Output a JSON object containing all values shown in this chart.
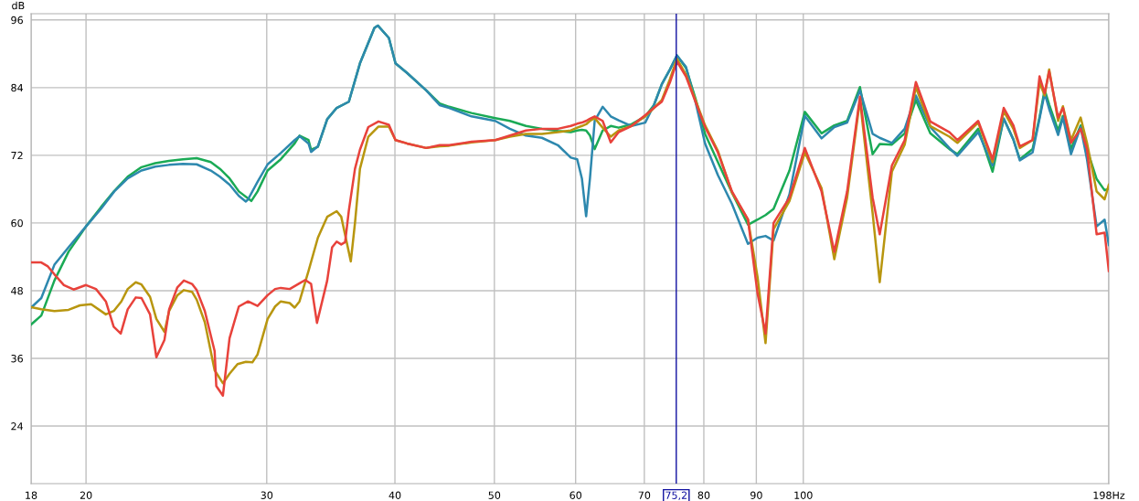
{
  "chart_data": {
    "type": "line",
    "ylabel": "dB",
    "log": "x",
    "grid": true,
    "line_style": "solid",
    "xlim": [
      17.68,
      198.5
    ],
    "xticks": [
      {
        "value": 17.68,
        "label": "18"
      },
      20,
      30,
      40,
      50,
      60,
      70,
      80,
      90,
      100,
      {
        "value": 198.5,
        "label": "198Hz"
      }
    ],
    "ylim": [
      13.8,
      97.1
    ],
    "yticks": [
      24,
      36,
      48,
      60,
      72,
      84,
      96
    ],
    "ref_lines": [
      {
        "axis": "x",
        "value": 75.2,
        "label": "75,2",
        "color": "#1010a0"
      }
    ],
    "series": [
      {
        "color": "#1aaa55",
        "x": [
          17.68,
          18.09,
          18.63,
          19.23,
          20.0,
          20.68,
          21.31,
          21.96,
          22.65,
          23.36,
          24.09,
          24.86,
          25.64,
          26.46,
          27.01,
          27.6,
          28.18,
          28.98,
          29.39,
          30.06,
          30.96,
          31.94,
          32.29,
          32.95,
          33.14,
          33.65,
          34.36,
          35.1,
          36.07,
          36.98,
          38.2,
          38.49,
          39.46,
          40.05,
          41.1,
          42.91,
          44.22,
          45.18,
          47.5,
          50.1,
          51.77,
          53.67,
          55.63,
          57.66,
          59.35,
          60.21,
          60.85,
          61.43,
          61.96,
          62.62,
          63.75,
          64.92,
          66.08,
          68.01,
          70.14,
          71.52,
          72.8,
          74.13,
          75.32,
          76.85,
          78.51,
          80.22,
          82.56,
          85.21,
          88.33,
          90.25,
          91.88,
          93.55,
          96.95,
          100.35,
          104.18,
          107.21,
          110.34,
          113.56,
          116.84,
          118.71,
          122.0,
          125.55,
          128.74,
          132.98,
          138.81,
          141.32,
          148.07,
          152.93,
          156.8,
          160.23,
          162.55,
          167.29,
          169.92,
          171.88,
          173.63,
          177.15,
          179.08,
          182.35,
          186.33,
          189.01,
          193.14,
          196.63,
          198.49
        ],
        "values": [
          42,
          43.6,
          49.8,
          54.9,
          59.4,
          62.8,
          65.7,
          68.2,
          69.9,
          70.6,
          71,
          71.3,
          71.5,
          70.8,
          69.6,
          67.9,
          65.6,
          63.9,
          65.6,
          69.3,
          71.3,
          74.1,
          75.5,
          74.7,
          73,
          73.5,
          78.4,
          80.4,
          81.5,
          88.3,
          94.6,
          95,
          92.8,
          88.3,
          86.6,
          83.5,
          81.2,
          80.6,
          79.5,
          78.6,
          78.1,
          77.2,
          76.7,
          76.3,
          76.1,
          76.4,
          76.5,
          76.4,
          75.5,
          73.1,
          76.4,
          77.2,
          76.9,
          77.5,
          78.9,
          80.9,
          84.6,
          87.2,
          89.7,
          87.5,
          82.1,
          75.8,
          70.8,
          65.4,
          59.7,
          60.6,
          61.4,
          62.5,
          69.3,
          79.7,
          75.9,
          77.3,
          78.1,
          84.1,
          72.2,
          74.0,
          73.9,
          75.9,
          81.8,
          75.9,
          73.1,
          72.2,
          76.7,
          69.1,
          78.5,
          74.8,
          71.3,
          73.1,
          78.8,
          83.6,
          81.0,
          76.4,
          79.0,
          73.1,
          77.3,
          73.1,
          67.8,
          65.8,
          66.1
        ]
      },
      {
        "color": "#2d88ae",
        "x": [
          17.68,
          18.09,
          18.63,
          19.23,
          20.0,
          20.68,
          21.31,
          21.96,
          22.65,
          23.36,
          24.09,
          24.86,
          25.64,
          26.46,
          27.01,
          27.6,
          28.18,
          28.63,
          28.77,
          29.39,
          30.06,
          30.96,
          31.94,
          32.29,
          32.95,
          33.14,
          33.65,
          34.36,
          35.1,
          36.07,
          36.98,
          38.2,
          38.49,
          39.46,
          40.05,
          41.1,
          42.91,
          44.22,
          45.18,
          47.5,
          50.1,
          51.77,
          53.67,
          55.63,
          57.66,
          59.35,
          60.21,
          60.85,
          61.43,
          61.96,
          62.62,
          63.75,
          64.92,
          66.08,
          68.01,
          70.14,
          71.52,
          72.8,
          74.13,
          75.32,
          76.85,
          78.51,
          80.22,
          82.56,
          85.21,
          88.33,
          90.25,
          91.88,
          93.55,
          96.95,
          100.35,
          104.18,
          107.21,
          110.34,
          113.56,
          116.84,
          118.71,
          122.0,
          125.55,
          128.74,
          132.98,
          138.81,
          141.32,
          148.07,
          152.93,
          156.8,
          160.23,
          162.55,
          167.29,
          169.92,
          171.88,
          173.63,
          177.15,
          179.08,
          182.35,
          186.33,
          189.01,
          193.14,
          196.63,
          198.49
        ],
        "values": [
          45,
          46.7,
          52.6,
          55.7,
          59.4,
          62.5,
          65.6,
          67.9,
          69.3,
          70,
          70.3,
          70.5,
          70.4,
          69.3,
          68.2,
          66.8,
          64.8,
          63.8,
          64.2,
          67.3,
          70.4,
          72.4,
          74.7,
          75.4,
          74.1,
          72.6,
          73.6,
          78.4,
          80.4,
          81.5,
          88.3,
          94.6,
          95,
          92.8,
          88.3,
          86.6,
          83.5,
          80.9,
          80.4,
          78.9,
          78.1,
          76.7,
          75.5,
          75.1,
          73.8,
          71.6,
          71.3,
          67.9,
          61.2,
          67.9,
          78.1,
          80.6,
          78.9,
          78.2,
          77.2,
          77.8,
          80.9,
          84.6,
          87.2,
          89.7,
          87.7,
          81.5,
          74.1,
          68.5,
          63.4,
          56.3,
          57.4,
          57.7,
          56.9,
          65.1,
          79.0,
          75.0,
          77.0,
          77.8,
          83.5,
          75.8,
          75.1,
          74.2,
          76.7,
          82.6,
          77.0,
          73.3,
          71.9,
          76.1,
          70.2,
          78.5,
          74.8,
          71.1,
          72.5,
          78.5,
          83.0,
          80.2,
          75.6,
          78.7,
          72.2,
          77.0,
          71.3,
          59.4,
          60.6,
          56.1
        ]
      },
      {
        "color": "#b8960f",
        "x": [
          17.68,
          18.09,
          18.63,
          19.23,
          19.73,
          20.23,
          20.91,
          21.28,
          21.65,
          21.96,
          22.36,
          22.65,
          23.09,
          23.42,
          23.85,
          24.1,
          24.55,
          24.91,
          25.37,
          25.64,
          26.11,
          26.69,
          27.19,
          27.6,
          28.1,
          28.63,
          29.05,
          29.39,
          30.06,
          30.57,
          30.96,
          31.59,
          31.94,
          32.29,
          32.95,
          33.65,
          34.36,
          35.1,
          35.46,
          36.23,
          36.57,
          36.98,
          37.68,
          38.55,
          39.46,
          40.05,
          41.1,
          42.91,
          44.22,
          45.18,
          47.5,
          50.1,
          51.77,
          53.67,
          55.63,
          57.66,
          59.35,
          60.21,
          60.85,
          61.43,
          61.96,
          62.62,
          63.75,
          64.92,
          66.08,
          68.01,
          70.14,
          71.52,
          72.8,
          74.13,
          75.32,
          76.85,
          78.51,
          80.22,
          82.56,
          85.21,
          88.33,
          90.25,
          91.88,
          93.55,
          96.95,
          100.35,
          104.18,
          107.21,
          110.34,
          113.56,
          116.84,
          118.71,
          122.0,
          125.55,
          128.74,
          132.98,
          138.81,
          141.32,
          148.07,
          152.93,
          156.8,
          160.23,
          162.55,
          167.29,
          169.92,
          171.88,
          173.63,
          177.15,
          179.08,
          182.35,
          186.33,
          189.01,
          193.14,
          196.63,
          198.49
        ],
        "values": [
          45.1,
          44.7,
          44.4,
          44.6,
          45.4,
          45.6,
          43.8,
          44.4,
          46.1,
          48.3,
          49.5,
          49.1,
          46.9,
          43,
          40.7,
          44.4,
          47.2,
          48.1,
          47.8,
          46.4,
          42.4,
          33.9,
          31.6,
          33.3,
          35,
          35.4,
          35.3,
          36.7,
          43,
          45.2,
          46.1,
          45.8,
          45,
          46.1,
          51.5,
          57.4,
          61.1,
          62.1,
          61.1,
          53.2,
          60,
          69.6,
          75.3,
          77.1,
          77.1,
          74.7,
          74.1,
          73.3,
          73.6,
          73.7,
          74.3,
          74.7,
          75.3,
          75.8,
          75.8,
          76.1,
          76.4,
          76.9,
          77.2,
          77.5,
          78.1,
          78.6,
          76.9,
          75.3,
          76.4,
          77.2,
          78.9,
          80.4,
          81.8,
          85.5,
          89.1,
          86.3,
          81.8,
          77.3,
          72.8,
          65.4,
          60.6,
          50.4,
          38.7,
          58.9,
          63.9,
          72.5,
          66.2,
          53.6,
          64.5,
          81.8,
          61.7,
          49.5,
          69.1,
          73.9,
          84.1,
          77.2,
          75.3,
          74.2,
          77.8,
          70.8,
          79.8,
          76.7,
          73.3,
          74.7,
          84.9,
          82.6,
          87.2,
          78.1,
          80.7,
          74.7,
          78.7,
          74.2,
          65.6,
          64.2,
          66.8
        ]
      },
      {
        "color": "#e8423b",
        "x": [
          17.68,
          18.09,
          18.36,
          18.63,
          19.03,
          19.45,
          20.0,
          20.45,
          20.91,
          21.28,
          21.62,
          21.96,
          22.36,
          22.65,
          23.09,
          23.42,
          23.85,
          24.1,
          24.55,
          24.91,
          25.37,
          25.64,
          26.11,
          26.69,
          26.79,
          27.19,
          27.6,
          28.18,
          28.77,
          29.39,
          30.06,
          30.57,
          30.96,
          31.59,
          32.29,
          32.71,
          33.14,
          33.58,
          34.36,
          34.74,
          35.1,
          35.46,
          35.77,
          36.07,
          36.57,
          36.98,
          37.68,
          38.55,
          39.46,
          40.05,
          41.1,
          42.91,
          44.22,
          45.18,
          47.5,
          50.1,
          51.77,
          53.67,
          55.63,
          57.66,
          59.35,
          60.21,
          60.85,
          61.43,
          61.96,
          62.62,
          63.75,
          64.92,
          66.08,
          68.01,
          70.14,
          71.52,
          72.8,
          74.13,
          75.32,
          76.85,
          78.51,
          80.22,
          82.56,
          85.21,
          88.33,
          90.25,
          91.88,
          93.55,
          96.95,
          100.35,
          104.18,
          107.21,
          110.34,
          113.56,
          116.84,
          118.71,
          122.0,
          125.55,
          128.74,
          132.98,
          138.81,
          141.32,
          148.07,
          152.93,
          156.8,
          160.23,
          162.55,
          167.29,
          169.92,
          171.88,
          173.63,
          177.15,
          179.08,
          182.35,
          186.33,
          189.01,
          193.14,
          196.63,
          198.49
        ],
        "values": [
          53,
          53,
          52.3,
          50.9,
          49,
          48.2,
          49,
          48.3,
          46.1,
          41.6,
          40.4,
          44.7,
          46.8,
          46.7,
          43.8,
          36.2,
          39.3,
          44.7,
          48.6,
          49.8,
          49.2,
          48.1,
          44.4,
          37.3,
          31.1,
          29.4,
          39.6,
          45.2,
          46.1,
          45.3,
          47.2,
          48.3,
          48.5,
          48.3,
          49.3,
          49.9,
          49.2,
          42.3,
          49.8,
          55.7,
          56.7,
          56.2,
          56.6,
          62.2,
          69.6,
          73,
          77,
          78,
          77.4,
          74.7,
          74.1,
          73.3,
          73.8,
          73.8,
          74.4,
          74.7,
          75.5,
          76.4,
          76.7,
          76.7,
          77.2,
          77.6,
          77.8,
          78.1,
          78.5,
          78.9,
          78.1,
          74.3,
          76.1,
          77.2,
          79.1,
          80.4,
          81.5,
          84.9,
          88.6,
          86,
          81.5,
          77,
          72.5,
          65.6,
          60.6,
          47.5,
          40.4,
          60.0,
          64.5,
          73.3,
          65.6,
          54.9,
          65.6,
          82.4,
          64.5,
          58.0,
          70.2,
          74.7,
          85.0,
          78.0,
          76.1,
          74.7,
          78.1,
          71.3,
          80.4,
          77.3,
          73.6,
          74.7,
          86.0,
          83.0,
          86.9,
          78.7,
          80.4,
          74.2,
          76.7,
          73.1,
          58.0,
          58.3,
          51.5
        ]
      }
    ]
  }
}
